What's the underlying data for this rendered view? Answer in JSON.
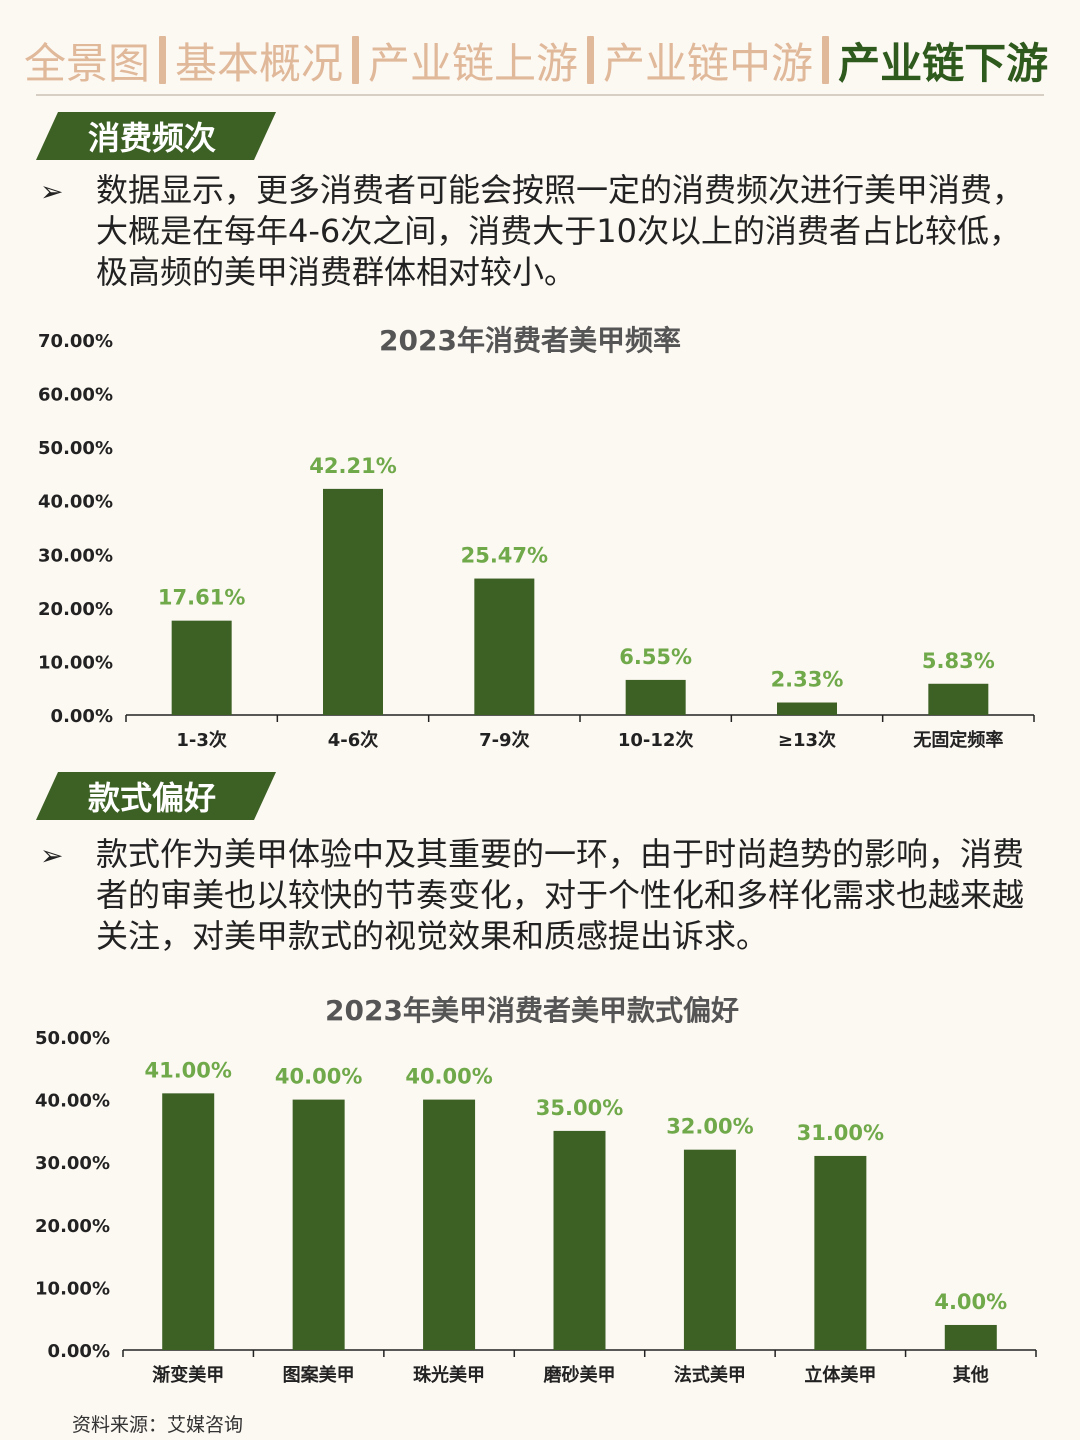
{
  "nav": {
    "items": [
      {
        "label": "全景图",
        "active": false
      },
      {
        "label": "基本概况",
        "active": false
      },
      {
        "label": "产业链上游",
        "active": false
      },
      {
        "label": "产业链中游",
        "active": false
      },
      {
        "label": "产业链下游",
        "active": true
      }
    ]
  },
  "section1": {
    "tag": "消费频次",
    "bullet_symbol": "➢",
    "text": "数据显示，更多消费者可能会按照一定的消费频次进行美甲消费，大概是在每年4-6次之间，消费大于10次以上的消费者占比较低，极高频的美甲消费群体相对较小。"
  },
  "section2": {
    "tag": "款式偏好",
    "bullet_symbol": "➢",
    "text": "款式作为美甲体验中及其重要的一环，由于时尚趋势的影响，消费者的审美也以较快的节奏变化，对于个性化和多样化需求也越来越关注，对美甲款式的视觉效果和质感提出诉求。"
  },
  "source": "资料来源：艾媒咨询",
  "colors": {
    "bar": "#3d6125",
    "label": "#6fa94a",
    "nav_inactive": "#e0b89a",
    "nav_active": "#2f5a1d",
    "background": "#fcf8f2"
  },
  "chart_data": [
    {
      "type": "bar",
      "title": "2023年消费者美甲频率",
      "categories": [
        "1-3次",
        "4-6次",
        "7-9次",
        "10-12次",
        "≥13次",
        "无固定频率"
      ],
      "values": [
        17.61,
        42.21,
        25.47,
        6.55,
        2.33,
        5.83
      ],
      "value_labels": [
        "17.61%",
        "42.21%",
        "25.47%",
        "6.55%",
        "2.33%",
        "5.83%"
      ],
      "yticks": [
        "0.00%",
        "10.00%",
        "20.00%",
        "30.00%",
        "40.00%",
        "50.00%",
        "60.00%",
        "70.00%"
      ],
      "ylim": [
        0,
        70
      ],
      "grid": false,
      "legend": "none"
    },
    {
      "type": "bar",
      "title": "2023年美甲消费者美甲款式偏好",
      "categories": [
        "渐变美甲",
        "图案美甲",
        "珠光美甲",
        "磨砂美甲",
        "法式美甲",
        "立体美甲",
        "其他"
      ],
      "values": [
        41,
        40,
        40,
        35,
        32,
        31,
        4
      ],
      "value_labels": [
        "41.00%",
        "40.00%",
        "40.00%",
        "35.00%",
        "32.00%",
        "31.00%",
        "4.00%"
      ],
      "yticks": [
        "0.00%",
        "10.00%",
        "20.00%",
        "30.00%",
        "40.00%",
        "50.00%"
      ],
      "ylim": [
        0,
        50
      ],
      "grid": false,
      "legend": "none"
    }
  ]
}
